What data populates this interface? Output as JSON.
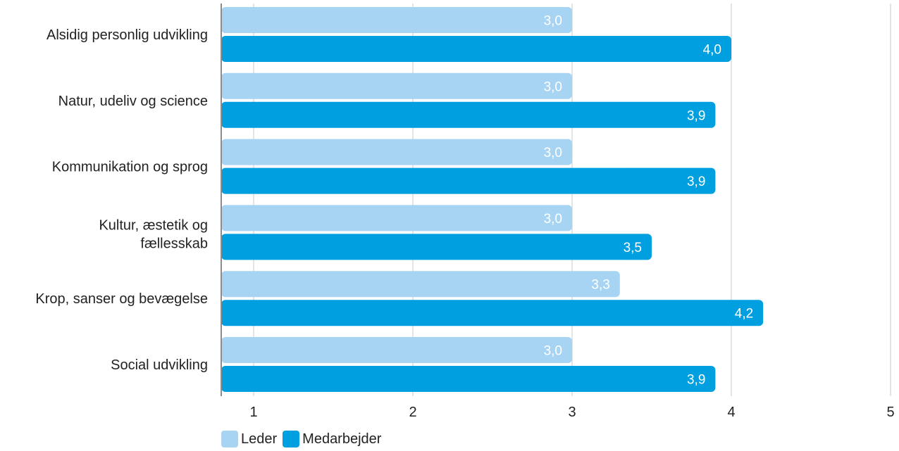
{
  "chart_data": {
    "type": "bar",
    "orientation": "horizontal",
    "categories": [
      "Alsidig personlig udvikling",
      "Natur, udeliv og science",
      "Kommunikation og sprog",
      "Kultur, æstetik og fællesskab",
      "Krop, sanser og bevægelse",
      "Social udvikling"
    ],
    "series": [
      {
        "name": "Leder",
        "color": "#a8d4f3",
        "values": [
          3.0,
          3.0,
          3.0,
          3.0,
          3.3,
          3.0
        ],
        "labels": [
          "3,0",
          "3,0",
          "3,0",
          "3,0",
          "3,3",
          "3,0"
        ]
      },
      {
        "name": "Medarbejder",
        "color": "#009fe0",
        "values": [
          4.0,
          3.9,
          3.9,
          3.5,
          4.2,
          3.9
        ],
        "labels": [
          "4,0",
          "3,9",
          "3,9",
          "3,5",
          "4,2",
          "3,9"
        ]
      }
    ],
    "xlim": [
      1,
      5
    ],
    "xticks": [
      "1",
      "2",
      "3",
      "4",
      "5"
    ],
    "grid": true,
    "legend": "bottom-left",
    "title": "",
    "xlabel": "",
    "ylabel": ""
  }
}
